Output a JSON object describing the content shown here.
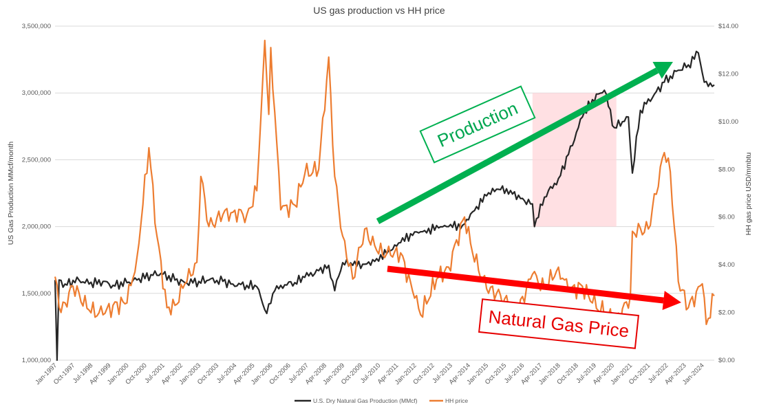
{
  "chart_data": {
    "type": "line",
    "title": "US gas production vs HH price",
    "ylabel": "US Gas Production MMcf/month",
    "y2label": "HH gas price USD/mmbtu",
    "ylim": [
      1000000,
      3500000
    ],
    "y2lim": [
      0,
      14
    ],
    "y_ticks": [
      "1,000,000",
      "1,500,000",
      "2,000,000",
      "2,500,000",
      "3,000,000",
      "3,500,000"
    ],
    "y2_ticks": [
      "$0.00",
      "$2.00",
      "$4.00",
      "$6.00",
      "$8.00",
      "$10.00",
      "$12.00",
      "$14.00"
    ],
    "x_ticks": [
      "Jan-1997",
      "Oct-1997",
      "Jul-1998",
      "Apr-1999",
      "Jan-2000",
      "Oct-2000",
      "Jul-2001",
      "Apr-2002",
      "Jan-2003",
      "Oct-2003",
      "Jul-2004",
      "Apr-2005",
      "Jan-2006",
      "Oct-2006",
      "Jul-2007",
      "Apr-2008",
      "Jan-2009",
      "Oct-2009",
      "Jul-2010",
      "Apr-2011",
      "Jan-2012",
      "Oct-2012",
      "Jul-2013",
      "Apr-2014",
      "Jan-2015",
      "Oct-2015",
      "Jul-2016",
      "Apr-2017",
      "Jan-2018",
      "Oct-2018",
      "Jul-2019",
      "Apr-2020",
      "Jan-2021",
      "Oct-2021",
      "Jul-2022",
      "Apr-2023",
      "Jan-2024"
    ],
    "x_range": [
      "1997-01",
      "2024-07"
    ],
    "grid": true,
    "legend_position": "bottom",
    "series": [
      {
        "name": "U.S. Dry Natural Gas Production (MMcf)",
        "color": "#262626",
        "axis": "left",
        "points": [
          [
            "1997-01",
            1600000
          ],
          [
            "1997-02",
            1000000
          ],
          [
            "1997-03",
            1600000
          ],
          [
            "1997-06",
            1570000
          ],
          [
            "1998-01",
            1600000
          ],
          [
            "1998-06",
            1570000
          ],
          [
            "1999-01",
            1590000
          ],
          [
            "1999-06",
            1560000
          ],
          [
            "2000-01",
            1580000
          ],
          [
            "2000-06",
            1600000
          ],
          [
            "2001-01",
            1640000
          ],
          [
            "2001-06",
            1650000
          ],
          [
            "2002-01",
            1600000
          ],
          [
            "2002-06",
            1580000
          ],
          [
            "2003-01",
            1590000
          ],
          [
            "2003-06",
            1600000
          ],
          [
            "2004-01",
            1590000
          ],
          [
            "2004-06",
            1570000
          ],
          [
            "2005-01",
            1560000
          ],
          [
            "2005-06",
            1550000
          ],
          [
            "2005-09",
            1420000
          ],
          [
            "2005-11",
            1350000
          ],
          [
            "2006-03",
            1520000
          ],
          [
            "2006-06",
            1560000
          ],
          [
            "2007-01",
            1580000
          ],
          [
            "2007-06",
            1620000
          ],
          [
            "2008-01",
            1670000
          ],
          [
            "2008-06",
            1710000
          ],
          [
            "2008-09",
            1520000
          ],
          [
            "2009-01",
            1730000
          ],
          [
            "2009-06",
            1710000
          ],
          [
            "2010-01",
            1720000
          ],
          [
            "2010-06",
            1760000
          ],
          [
            "2011-01",
            1820000
          ],
          [
            "2011-06",
            1880000
          ],
          [
            "2012-01",
            1960000
          ],
          [
            "2012-06",
            1970000
          ],
          [
            "2013-01",
            1990000
          ],
          [
            "2013-06",
            2000000
          ],
          [
            "2014-01",
            2010000
          ],
          [
            "2014-06",
            2110000
          ],
          [
            "2015-01",
            2230000
          ],
          [
            "2015-06",
            2280000
          ],
          [
            "2016-01",
            2270000
          ],
          [
            "2016-06",
            2210000
          ],
          [
            "2016-12",
            2170000
          ],
          [
            "2017-01",
            2000000
          ],
          [
            "2017-06",
            2220000
          ],
          [
            "2018-01",
            2360000
          ],
          [
            "2018-06",
            2540000
          ],
          [
            "2019-01",
            2820000
          ],
          [
            "2019-06",
            2950000
          ],
          [
            "2019-12",
            3020000
          ],
          [
            "2020-05",
            2740000
          ],
          [
            "2020-12",
            2820000
          ],
          [
            "2021-02",
            2400000
          ],
          [
            "2021-06",
            2870000
          ],
          [
            "2022-01",
            2990000
          ],
          [
            "2022-06",
            3080000
          ],
          [
            "2023-01",
            3170000
          ],
          [
            "2023-06",
            3210000
          ],
          [
            "2023-11",
            3300000
          ],
          [
            "2024-02",
            3080000
          ],
          [
            "2024-07",
            3060000
          ]
        ]
      },
      {
        "name": "HH price",
        "color": "#ed7d31",
        "axis": "right",
        "points": [
          [
            "1997-01",
            3.5
          ],
          [
            "1997-04",
            2.0
          ],
          [
            "1997-10",
            3.1
          ],
          [
            "1998-06",
            2.1
          ],
          [
            "1999-01",
            1.9
          ],
          [
            "1999-06",
            2.3
          ],
          [
            "2000-01",
            2.4
          ],
          [
            "2000-06",
            4.3
          ],
          [
            "2000-12",
            8.9
          ],
          [
            "2001-04",
            5.2
          ],
          [
            "2001-09",
            2.2
          ],
          [
            "2002-01",
            2.3
          ],
          [
            "2002-06",
            3.2
          ],
          [
            "2002-12",
            4.1
          ],
          [
            "2003-02",
            7.7
          ],
          [
            "2003-06",
            5.6
          ],
          [
            "2004-01",
            6.1
          ],
          [
            "2004-06",
            6.2
          ],
          [
            "2005-01",
            6.1
          ],
          [
            "2005-06",
            7.1
          ],
          [
            "2005-09",
            11.8
          ],
          [
            "2005-10",
            13.4
          ],
          [
            "2005-12",
            10.3
          ],
          [
            "2006-01",
            13.1
          ],
          [
            "2006-06",
            6.3
          ],
          [
            "2007-01",
            6.5
          ],
          [
            "2007-06",
            7.8
          ],
          [
            "2008-01",
            8.0
          ],
          [
            "2008-06",
            12.7
          ],
          [
            "2008-09",
            7.7
          ],
          [
            "2009-01",
            5.2
          ],
          [
            "2009-06",
            3.4
          ],
          [
            "2009-12",
            5.5
          ],
          [
            "2010-06",
            4.6
          ],
          [
            "2011-01",
            4.4
          ],
          [
            "2011-06",
            4.5
          ],
          [
            "2012-01",
            2.6
          ],
          [
            "2012-04",
            1.9
          ],
          [
            "2012-12",
            3.4
          ],
          [
            "2013-06",
            3.9
          ],
          [
            "2014-02",
            6.0
          ],
          [
            "2014-06",
            4.5
          ],
          [
            "2015-01",
            3.0
          ],
          [
            "2015-06",
            2.8
          ],
          [
            "2016-01",
            2.3
          ],
          [
            "2016-03",
            1.7
          ],
          [
            "2016-12",
            3.6
          ],
          [
            "2017-06",
            3.0
          ],
          [
            "2018-01",
            3.9
          ],
          [
            "2018-06",
            2.9
          ],
          [
            "2019-01",
            3.1
          ],
          [
            "2019-06",
            2.4
          ],
          [
            "2020-06",
            1.6
          ],
          [
            "2021-01",
            2.7
          ],
          [
            "2021-02",
            5.4
          ],
          [
            "2021-10",
            5.5
          ],
          [
            "2022-06",
            8.7
          ],
          [
            "2022-09",
            7.9
          ],
          [
            "2023-01",
            3.3
          ],
          [
            "2023-06",
            2.2
          ],
          [
            "2024-01",
            3.2
          ],
          [
            "2024-03",
            1.5
          ],
          [
            "2024-07",
            2.7
          ]
        ]
      }
    ],
    "annotations": [
      {
        "text": "Production",
        "color": "#00b050"
      },
      {
        "text": "Natural Gas Price",
        "color": "#ff0000"
      }
    ]
  }
}
